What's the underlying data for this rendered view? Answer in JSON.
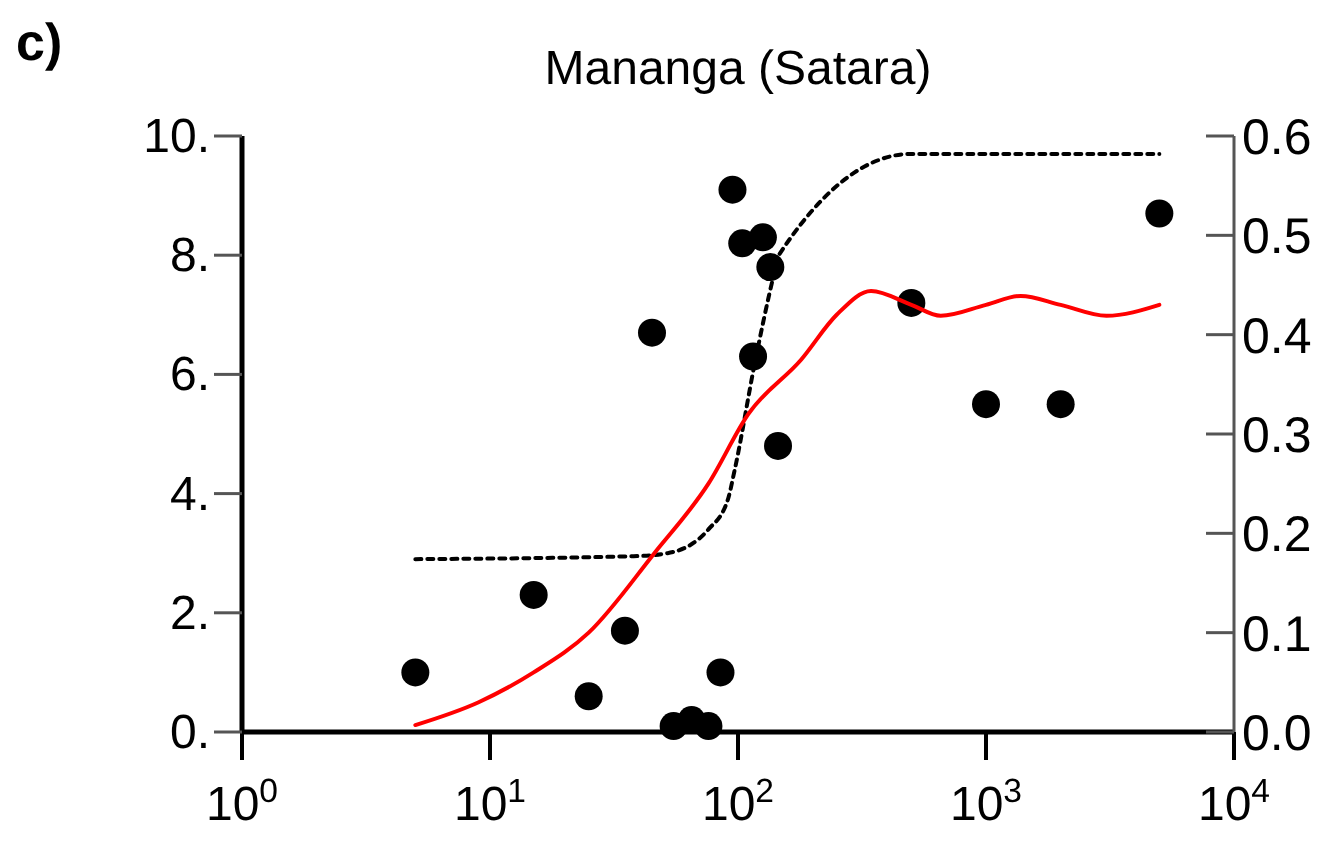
{
  "chart_data": {
    "type": "scatter",
    "title": "Mananga (Satara)",
    "annotations": [
      "c)"
    ],
    "log": "x",
    "xlim": [
      1,
      10000
    ],
    "xticks": [
      {
        "value": 1,
        "label": "10$^{0}$"
      },
      {
        "value": 10,
        "label": "10$^{1}$"
      },
      {
        "value": 100,
        "label": "10$^{2}$"
      },
      {
        "value": 1000,
        "label": "10$^{3}$"
      },
      {
        "value": 10000,
        "label": "10$^{4}$"
      }
    ],
    "ylim": [
      0,
      10
    ],
    "yticks": [
      {
        "value": 0,
        "label": "0."
      },
      {
        "value": 2,
        "label": "2."
      },
      {
        "value": 4,
        "label": "4."
      },
      {
        "value": 6,
        "label": "6."
      },
      {
        "value": 8,
        "label": "8."
      },
      {
        "value": 10,
        "label": "10."
      }
    ],
    "y2lim": [
      0,
      0.6
    ],
    "y2ticks": [
      {
        "value": 0,
        "label": "0.0"
      },
      {
        "value": 0.1,
        "label": "0.1"
      },
      {
        "value": 0.2,
        "label": "0.2"
      },
      {
        "value": 0.3,
        "label": "0.3"
      },
      {
        "value": 0.4,
        "label": "0.4"
      },
      {
        "value": 0.5,
        "label": "0.5"
      },
      {
        "value": 0.6,
        "label": "0.6"
      }
    ],
    "grid": false,
    "series": [
      {
        "color": "#000000",
        "marker": "circle",
        "x": [
          5,
          15,
          25,
          35,
          45,
          55,
          65,
          76,
          85,
          95,
          104,
          126,
          115,
          135,
          145,
          500,
          1000,
          2000,
          5000
        ],
        "values": [
          1.0,
          2.3,
          0.6,
          1.7,
          6.7,
          0.1,
          0.2,
          0.1,
          1.0,
          9.1,
          8.2,
          8.3,
          6.3,
          7.8,
          4.8,
          7.2,
          5.5,
          5.5,
          8.7
        ]
      },
      {
        "type": "line",
        "color": "#000000",
        "line_style": "dotted",
        "marker": "none",
        "x": [
          5,
          38,
          52,
          76,
          91,
          97,
          117,
          140,
          146,
          500,
          5000
        ],
        "values": [
          2.9,
          2.95,
          3.0,
          3.4,
          3.9,
          4.4,
          6.2,
          7.7,
          8.0,
          9.7,
          9.7
        ]
      },
      {
        "type": "line",
        "color": "#ff0000",
        "line_style": "solid",
        "marker": "none",
        "axis": "y2",
        "x": [
          5,
          9,
          15,
          25,
          46,
          76,
          110,
          180,
          250,
          344,
          500,
          657,
          1000,
          1380,
          2000,
          3060,
          5000
        ],
        "values": [
          0.007,
          0.03,
          0.06,
          0.1,
          0.18,
          0.25,
          0.32,
          0.375,
          0.42,
          0.444,
          0.43,
          0.419,
          0.43,
          0.439,
          0.43,
          0.419,
          0.43
        ]
      }
    ]
  }
}
